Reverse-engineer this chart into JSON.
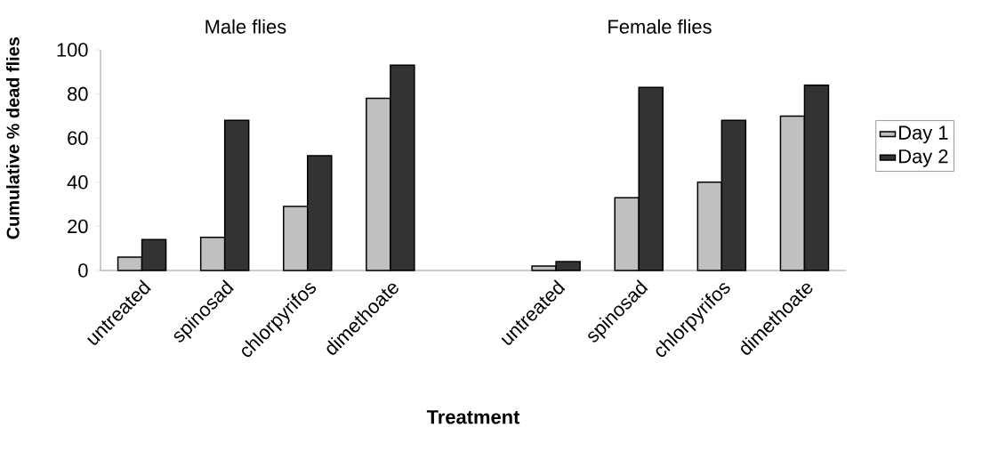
{
  "chart_data": {
    "type": "bar",
    "ylabel": "Cumulative % dead flies",
    "xlabel": "Treatment",
    "categories": [
      "untreated",
      "spinosad",
      "chlorpyrifos",
      "dimethoate",
      null,
      "untreated",
      "spinosad",
      "chlorpyrifos",
      "dimethoate"
    ],
    "series": [
      {
        "name": "Day 1",
        "color": "#c0c0c0",
        "values": [
          6,
          15,
          29,
          78,
          null,
          2,
          33,
          40,
          70
        ]
      },
      {
        "name": "Day 2",
        "color": "#333333",
        "values": [
          14,
          68,
          52,
          93,
          null,
          4,
          83,
          68,
          84
        ]
      }
    ],
    "annotations": [
      "Male flies",
      "Female flies"
    ],
    "ylim": [
      0,
      100
    ],
    "yticks": [
      0,
      20,
      40,
      60,
      80,
      100
    ],
    "legend": "right",
    "grid": false
  }
}
